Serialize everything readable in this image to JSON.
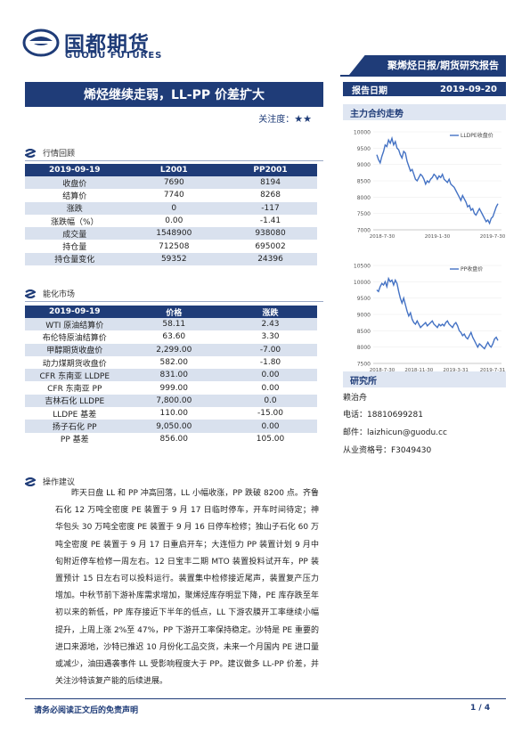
{
  "header": {
    "logo_cn": "国都期货",
    "logo_en": "GUODU FUTURES",
    "banner": "聚烯烃日报/期货研究报告",
    "date_label": "报告日期",
    "date_value": "2019-09-20",
    "brand_color": "#1f3c78"
  },
  "title": "烯烃继续走弱，LL-PP 价差扩大",
  "attention": {
    "label": "关注度：",
    "stars": "★★"
  },
  "section1": {
    "heading": "行情回顾",
    "columns": [
      "2019-09-19",
      "L2001",
      "PP2001"
    ],
    "rows": [
      [
        "收盘价",
        "7690",
        "8194"
      ],
      [
        "结算价",
        "7740",
        "8268"
      ],
      [
        "涨跌",
        "0",
        "-117"
      ],
      [
        "涨跌幅（%）",
        "0.00",
        "-1.41"
      ],
      [
        "成交量",
        "1548900",
        "938080"
      ],
      [
        "持仓量",
        "712508",
        "695002"
      ],
      [
        "持仓量变化",
        "59352",
        "24396"
      ]
    ]
  },
  "section2": {
    "heading": "能化市场",
    "columns": [
      "2019-09-19",
      "价格",
      "涨跌"
    ],
    "rows": [
      [
        "WTI 原油结算价",
        "58.11",
        "2.43"
      ],
      [
        "布伦特原油结算价",
        "63.60",
        "3.30"
      ],
      [
        "甲醇期货收盘价",
        "2,299.00",
        "-7.00"
      ],
      [
        "动力煤期货收盘价",
        "582.00",
        "-1.80"
      ],
      [
        "CFR 东南亚 LLDPE",
        "831.00",
        "0.00"
      ],
      [
        "CFR 东南亚 PP",
        "999.00",
        "0.00"
      ],
      [
        "吉林石化 LLDPE",
        "7,800.00",
        "0.0"
      ],
      [
        "LLDPE 基差",
        "110.00",
        "-15.00"
      ],
      [
        "扬子石化 PP",
        "9,050.00",
        "0.00"
      ],
      [
        "PP 基差",
        "856.00",
        "105.00"
      ]
    ]
  },
  "section3": {
    "heading": "操作建议",
    "text": "昨天日盘 LL 和 PP 冲高回落，LL 小幅收涨，PP 跌破 8200 点。齐鲁石化 12 万吨全密度 PE 装置于 9 月 17 日临时停车，开车时间待定；神华包头 30 万吨全密度 PE 装置于 9 月 16 日停车检修；独山子石化 60 万吨全密度 PE 装置于 9 月 17 日重启开车；大连恒力 PP 装置计划 9 月中旬附近停车检修一周左右。12 日宝丰二期 MTO 装置投料试开车，PP 装置预计 15 日左右可以投料运行。装置集中检修接近尾声，装置复产压力增加。中秋节前下游补库需求增加，聚烯烃库存明显下降，PE 库存跌至年初以来的新低，PP 库存接近下半年的低点，LL 下游农膜开工率继续小幅提升，上周上涨 2%至 47%，PP 下游开工率保持稳定。沙特是 PE 重要的进口来源地，沙特已推迟 10 月份化工品交货，未来一个月国内 PE 进口量或减少，油田遇袭事件 LL 受影响程度大于 PP。建议做多 LL-PP 价差，并关注沙特该复产能的后续进展。"
  },
  "right": {
    "chart_section": "主力合约走势",
    "research_section": "研究所",
    "analyst": "赖治舟",
    "phone": "电话：18810699281",
    "email": "邮件：laizhicun@guodu.cc",
    "license": "从业资格号：F3049430"
  },
  "chart_data": [
    {
      "type": "line",
      "series": [
        {
          "name": "LLDPE收盘价",
          "color": "#4472c4"
        }
      ],
      "x_ticks": [
        "2018-7-30",
        "2019-1-30",
        "2019-7-30"
      ],
      "ylim": [
        7000,
        10000
      ],
      "y_ticks": [
        7000,
        7500,
        8000,
        8500,
        9000,
        9500,
        10000
      ],
      "values": [
        9300,
        9150,
        9050,
        9250,
        9400,
        9600,
        9550,
        9750,
        9650,
        9800,
        9600,
        9700,
        9500,
        9450,
        9300,
        9200,
        9400,
        9350,
        9100,
        8950,
        8800,
        8850,
        8700,
        8550,
        8500,
        8600,
        8700,
        8650,
        8550,
        8400,
        8500,
        8450,
        8550,
        8600,
        8700,
        8650,
        8550,
        8650,
        8600,
        8700,
        8550,
        8500,
        8450,
        8550,
        8400,
        8350,
        8300,
        8200,
        8100,
        8000,
        7900,
        8050,
        7950,
        7850,
        7700,
        7750,
        7600,
        7650,
        7500,
        7450,
        7550,
        7650,
        7550,
        7450,
        7350,
        7250,
        7300,
        7200,
        7350,
        7400,
        7550,
        7700,
        7800
      ]
    },
    {
      "type": "line",
      "series": [
        {
          "name": "PP收盘价",
          "color": "#4472c4"
        }
      ],
      "x_ticks": [
        "2018-7-30",
        "2018-11-30",
        "2019-3-31",
        "2019-7-31"
      ],
      "ylim": [
        7500,
        10500
      ],
      "y_ticks": [
        7500,
        8000,
        8500,
        9000,
        9500,
        10000,
        10500
      ],
      "values": [
        9750,
        9700,
        9850,
        9950,
        9900,
        10000,
        9850,
        10100,
        10000,
        10050,
        9900,
        10050,
        9950,
        9700,
        9500,
        9350,
        9500,
        9300,
        9100,
        8950,
        9050,
        8850,
        8750,
        8700,
        8800,
        8700,
        8600,
        8650,
        8700,
        8750,
        8650,
        8700,
        8750,
        8800,
        8700,
        8650,
        8600,
        8700,
        8650,
        8700,
        8650,
        8750,
        8800,
        8700,
        8650,
        8600,
        8700,
        8750,
        8650,
        8500,
        8450,
        8350,
        8400,
        8300,
        8250,
        8350,
        8450,
        8300,
        8200,
        8100,
        8000,
        8100,
        8050,
        8000,
        7950,
        8050,
        8150,
        8050,
        8000,
        8100,
        8250,
        8300,
        8200
      ]
    }
  ],
  "footer": {
    "left": "请务必阅读正文后的免责声明",
    "page": "1 / 4"
  }
}
